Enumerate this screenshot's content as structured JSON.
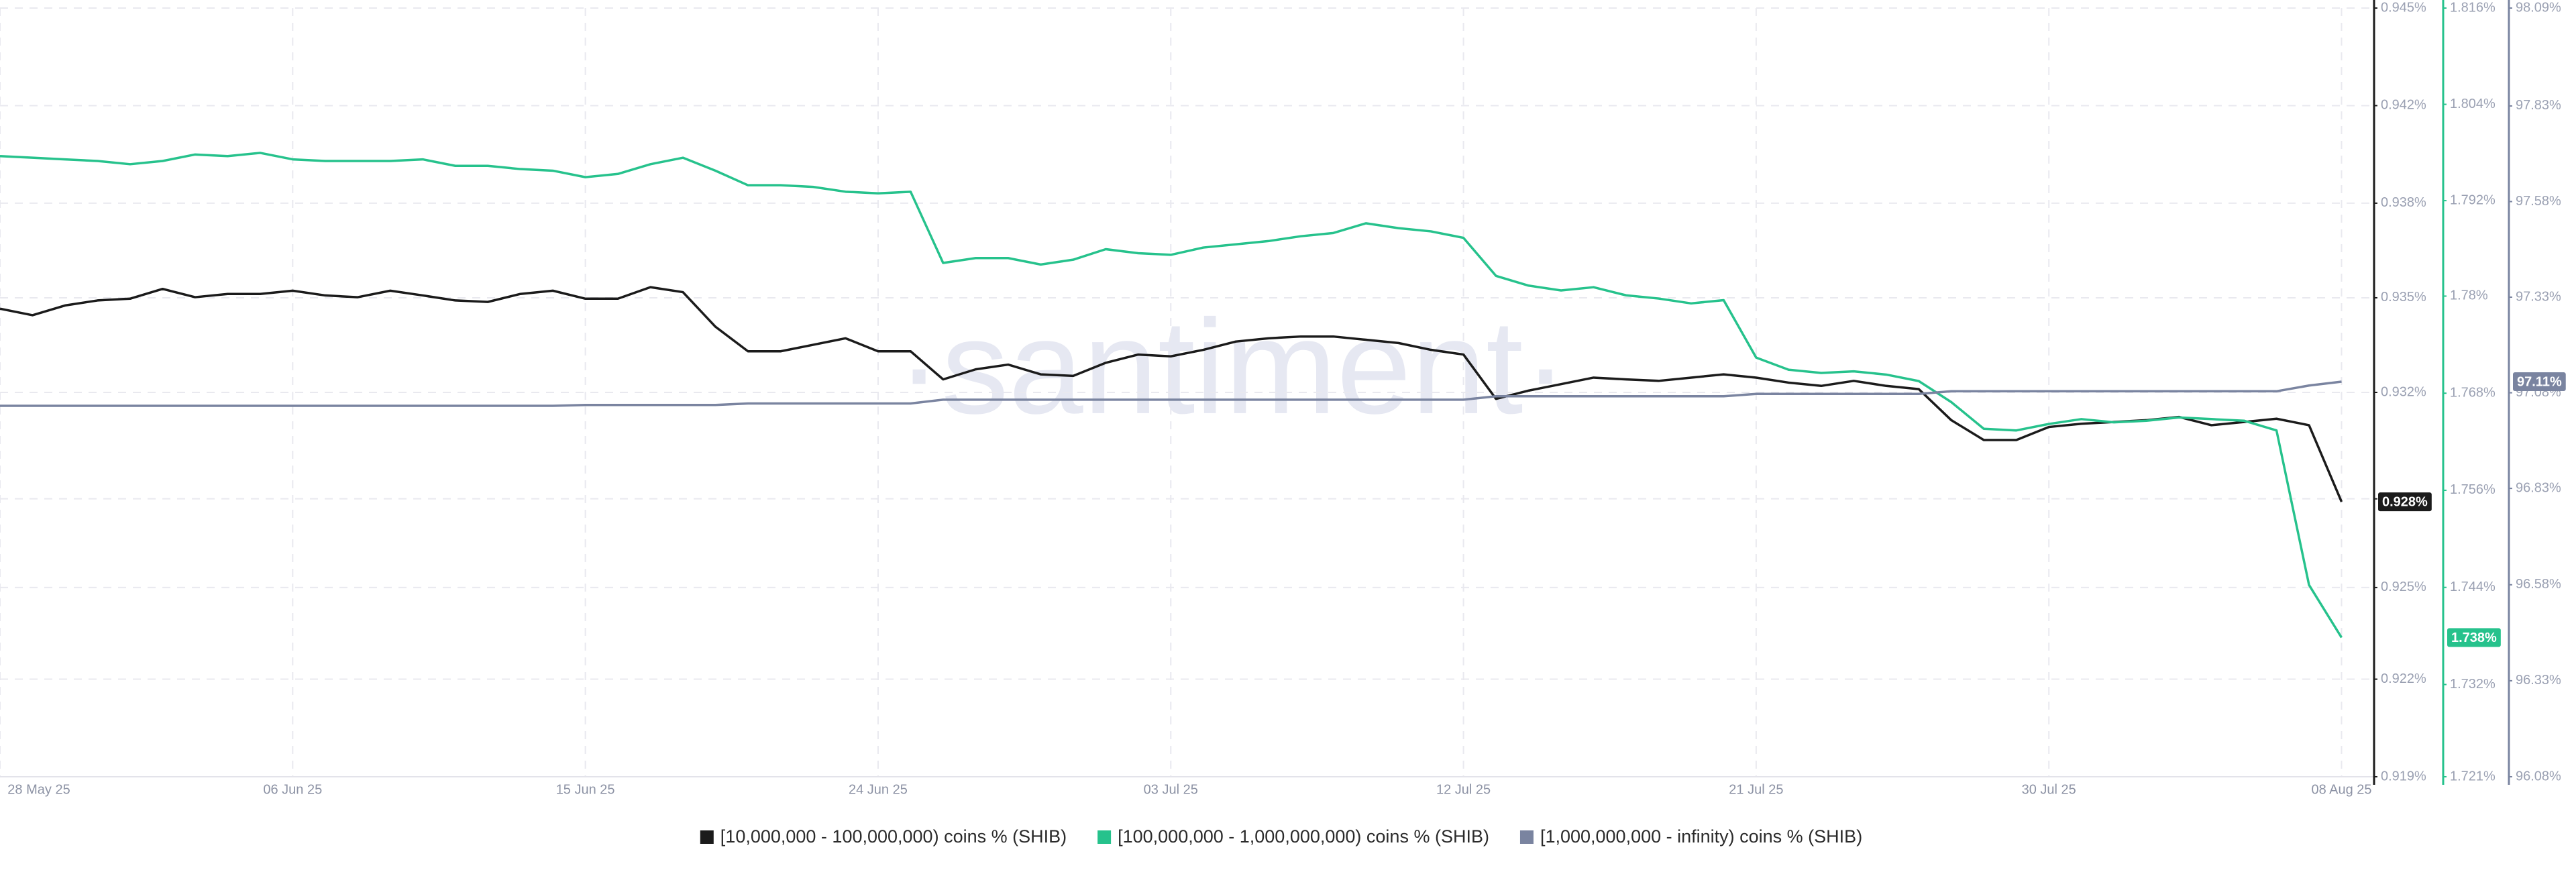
{
  "chart_data": {
    "type": "line",
    "watermark": "·santiment·",
    "grid": true,
    "x": [
      "2025-05-28",
      "2025-05-29",
      "2025-05-30",
      "2025-05-31",
      "2025-06-01",
      "2025-06-02",
      "2025-06-03",
      "2025-06-04",
      "2025-06-05",
      "2025-06-06",
      "2025-06-07",
      "2025-06-08",
      "2025-06-09",
      "2025-06-10",
      "2025-06-11",
      "2025-06-12",
      "2025-06-13",
      "2025-06-14",
      "2025-06-15",
      "2025-06-16",
      "2025-06-17",
      "2025-06-18",
      "2025-06-19",
      "2025-06-20",
      "2025-06-21",
      "2025-06-22",
      "2025-06-23",
      "2025-06-24",
      "2025-06-25",
      "2025-06-26",
      "2025-06-27",
      "2025-06-28",
      "2025-06-29",
      "2025-06-30",
      "2025-07-01",
      "2025-07-02",
      "2025-07-03",
      "2025-07-04",
      "2025-07-05",
      "2025-07-06",
      "2025-07-07",
      "2025-07-08",
      "2025-07-09",
      "2025-07-10",
      "2025-07-11",
      "2025-07-12",
      "2025-07-13",
      "2025-07-14",
      "2025-07-15",
      "2025-07-16",
      "2025-07-17",
      "2025-07-18",
      "2025-07-19",
      "2025-07-20",
      "2025-07-21",
      "2025-07-22",
      "2025-07-23",
      "2025-07-24",
      "2025-07-25",
      "2025-07-26",
      "2025-07-27",
      "2025-07-28",
      "2025-07-29",
      "2025-07-30",
      "2025-07-31",
      "2025-08-01",
      "2025-08-02",
      "2025-08-03",
      "2025-08-04",
      "2025-08-05",
      "2025-08-06",
      "2025-08-07",
      "2025-08-08"
    ],
    "xlim": [
      "2025-05-28",
      "2025-08-09"
    ],
    "xticks": [
      {
        "value": "2025-05-28",
        "label": "28 May 25"
      },
      {
        "value": "2025-06-06",
        "label": "06 Jun 25"
      },
      {
        "value": "2025-06-15",
        "label": "15 Jun 25"
      },
      {
        "value": "2025-06-24",
        "label": "24 Jun 25"
      },
      {
        "value": "2025-07-03",
        "label": "03 Jul 25"
      },
      {
        "value": "2025-07-12",
        "label": "12 Jul 25"
      },
      {
        "value": "2025-07-21",
        "label": "21 Jul 25"
      },
      {
        "value": "2025-07-30",
        "label": "30 Jul 25"
      },
      {
        "value": "2025-08-08",
        "label": "08 Aug 25"
      }
    ],
    "ylim": [
      0.919,
      0.945
    ],
    "yticks": [
      {
        "value": 0.919,
        "label": "0.919%"
      },
      {
        "value": 0.9223,
        "label": "0.922%"
      },
      {
        "value": 0.9254,
        "label": "0.925%"
      },
      {
        "value": 0.9284,
        "label": "0.928%"
      },
      {
        "value": 0.932,
        "label": "0.932%"
      },
      {
        "value": 0.9352,
        "label": "0.935%"
      },
      {
        "value": 0.9384,
        "label": "0.938%"
      },
      {
        "value": 0.9417,
        "label": "0.942%"
      },
      {
        "value": 0.945,
        "label": "0.945%"
      }
    ],
    "y2lim": [
      1.721,
      1.816
    ],
    "y2ticks": [
      {
        "value": 1.721,
        "label": "1.721%"
      },
      {
        "value": 1.7324,
        "label": "1.732%"
      },
      {
        "value": 1.7444,
        "label": "1.744%"
      },
      {
        "value": 1.7564,
        "label": "1.756%"
      },
      {
        "value": 1.7684,
        "label": "1.768%"
      },
      {
        "value": 1.7804,
        "label": "1.78%"
      },
      {
        "value": 1.7922,
        "label": "1.792%"
      },
      {
        "value": 1.8041,
        "label": "1.804%"
      },
      {
        "value": 1.816,
        "label": "1.816%"
      }
    ],
    "y3lim": [
      96.08,
      98.09
    ],
    "y3ticks": [
      {
        "value": 96.08,
        "label": "96.08%"
      },
      {
        "value": 96.331,
        "label": "96.33%"
      },
      {
        "value": 96.582,
        "label": "96.58%"
      },
      {
        "value": 96.834,
        "label": "96.83%"
      },
      {
        "value": 97.084,
        "label": "97.08%"
      },
      {
        "value": 97.334,
        "label": "97.33%"
      },
      {
        "value": 97.584,
        "label": "97.58%"
      },
      {
        "value": 97.834,
        "label": "97.83%"
      },
      {
        "value": 98.09,
        "label": "98.09%"
      }
    ],
    "series": [
      {
        "name": "[10,000,000 - 100,000,000) coins % (SHIB)",
        "color": "#1b1b1b",
        "axis": "y",
        "last_value_label": "0.928%",
        "values": [
          0.93483,
          0.93461,
          0.93494,
          0.93511,
          0.93517,
          0.9355,
          0.93522,
          0.93533,
          0.93533,
          0.93544,
          0.93528,
          0.93522,
          0.93544,
          0.93528,
          0.93511,
          0.93506,
          0.93533,
          0.93544,
          0.93517,
          0.93517,
          0.93556,
          0.93539,
          0.93422,
          0.93339,
          0.93339,
          0.93361,
          0.93383,
          0.93339,
          0.93339,
          0.93244,
          0.93278,
          0.93294,
          0.93261,
          0.93256,
          0.933,
          0.93328,
          0.93322,
          0.93344,
          0.93372,
          0.93383,
          0.93389,
          0.93389,
          0.93378,
          0.93367,
          0.93344,
          0.93328,
          0.93178,
          0.93206,
          0.93228,
          0.9325,
          0.93244,
          0.93239,
          0.9325,
          0.93261,
          0.9325,
          0.93233,
          0.93222,
          0.93239,
          0.93222,
          0.93211,
          0.93106,
          0.93039,
          0.93039,
          0.93083,
          0.93094,
          0.931,
          0.93106,
          0.93117,
          0.93089,
          0.931,
          0.93111,
          0.93089,
          0.9283
        ]
      },
      {
        "name": "[100,000,000 - 1,000,000,000) coins % (SHIB)",
        "color": "#26c28c",
        "axis": "y2",
        "last_value_label": "1.738%",
        "values": [
          1.7977,
          1.7975,
          1.7973,
          1.7971,
          1.7967,
          1.7971,
          1.7979,
          1.7977,
          1.7981,
          1.7973,
          1.7971,
          1.7971,
          1.7971,
          1.7973,
          1.7965,
          1.7965,
          1.7961,
          1.7959,
          1.7951,
          1.7955,
          1.7967,
          1.7975,
          1.7959,
          1.7941,
          1.7941,
          1.7939,
          1.7933,
          1.7931,
          1.7933,
          1.7845,
          1.7851,
          1.7851,
          1.7843,
          1.7849,
          1.7862,
          1.7857,
          1.7855,
          1.7864,
          1.7868,
          1.7872,
          1.7878,
          1.7882,
          1.7894,
          1.7888,
          1.7884,
          1.7876,
          1.7829,
          1.7817,
          1.7811,
          1.7815,
          1.7805,
          1.7801,
          1.7795,
          1.7799,
          1.7728,
          1.7713,
          1.7709,
          1.7711,
          1.7707,
          1.7699,
          1.7673,
          1.764,
          1.7638,
          1.7646,
          1.7652,
          1.7648,
          1.765,
          1.7654,
          1.7652,
          1.765,
          1.7638,
          1.7447,
          1.7382
        ]
      },
      {
        "name": "[1,000,000,000 - infinity) coins % (SHIB)",
        "color": "#7a84a0",
        "axis": "y3",
        "last_value_label": "97.11%",
        "values": [
          97.05,
          97.05,
          97.05,
          97.05,
          97.05,
          97.05,
          97.05,
          97.05,
          97.05,
          97.05,
          97.05,
          97.05,
          97.05,
          97.05,
          97.05,
          97.05,
          97.05,
          97.05,
          97.052,
          97.052,
          97.052,
          97.052,
          97.052,
          97.056,
          97.056,
          97.056,
          97.056,
          97.056,
          97.056,
          97.066,
          97.066,
          97.066,
          97.066,
          97.066,
          97.066,
          97.066,
          97.066,
          97.066,
          97.066,
          97.066,
          97.066,
          97.066,
          97.066,
          97.066,
          97.066,
          97.066,
          97.075,
          97.075,
          97.075,
          97.075,
          97.075,
          97.075,
          97.075,
          97.075,
          97.081,
          97.081,
          97.081,
          97.081,
          97.081,
          97.081,
          97.088,
          97.088,
          97.088,
          97.088,
          97.088,
          97.088,
          97.088,
          97.088,
          97.088,
          97.088,
          97.088,
          97.103,
          97.113
        ]
      }
    ]
  }
}
